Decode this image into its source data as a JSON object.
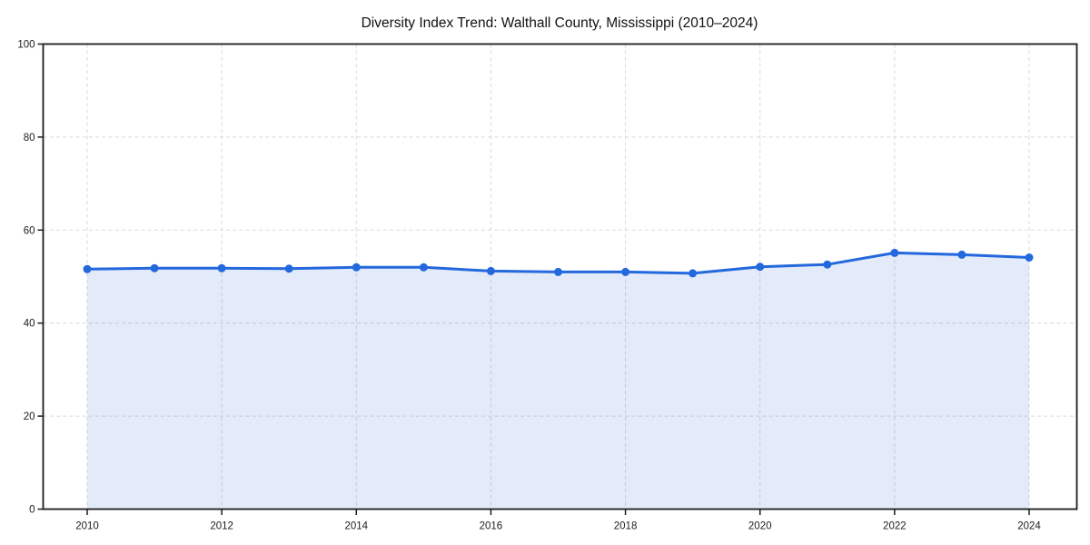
{
  "window": {
    "background": "#ffffff"
  },
  "chart_data": {
    "type": "line",
    "title": "Diversity Index Trend: Walthall County, Mississippi (2010–2024)",
    "x": [
      2010,
      2011,
      2012,
      2013,
      2014,
      2015,
      2016,
      2017,
      2018,
      2019,
      2020,
      2021,
      2022,
      2023,
      2024
    ],
    "series": [
      {
        "name": "Diversity Index",
        "values": [
          51.6,
          51.8,
          51.8,
          51.7,
          52.0,
          52.0,
          51.2,
          51.0,
          51.0,
          50.7,
          52.1,
          52.6,
          55.1,
          54.7,
          54.1
        ]
      }
    ],
    "xlabel": "",
    "ylabel": "",
    "xlim": [
      2009.34,
      2024.71
    ],
    "ylim": [
      0,
      100
    ],
    "xticks": [
      2010,
      2012,
      2014,
      2016,
      2018,
      2020,
      2022,
      2024
    ],
    "yticks": [
      0,
      20,
      40,
      60,
      80,
      100
    ],
    "grid": true,
    "grid_style": "dashed",
    "legend": false,
    "area_fill_under_line": true,
    "style": {
      "line_color": "#2368dd",
      "marker_color": "#2368dd",
      "area_fill": "rgba(35, 104, 221, 0.13)",
      "grid_color": "#d9d9d9",
      "spine_color": "#1c1c1c",
      "tick_color": "#1c1c1c",
      "tick_label_color": "#1c1c1c",
      "title_color": "#111111",
      "line_width": 3,
      "marker_radius": 4.5
    }
  }
}
